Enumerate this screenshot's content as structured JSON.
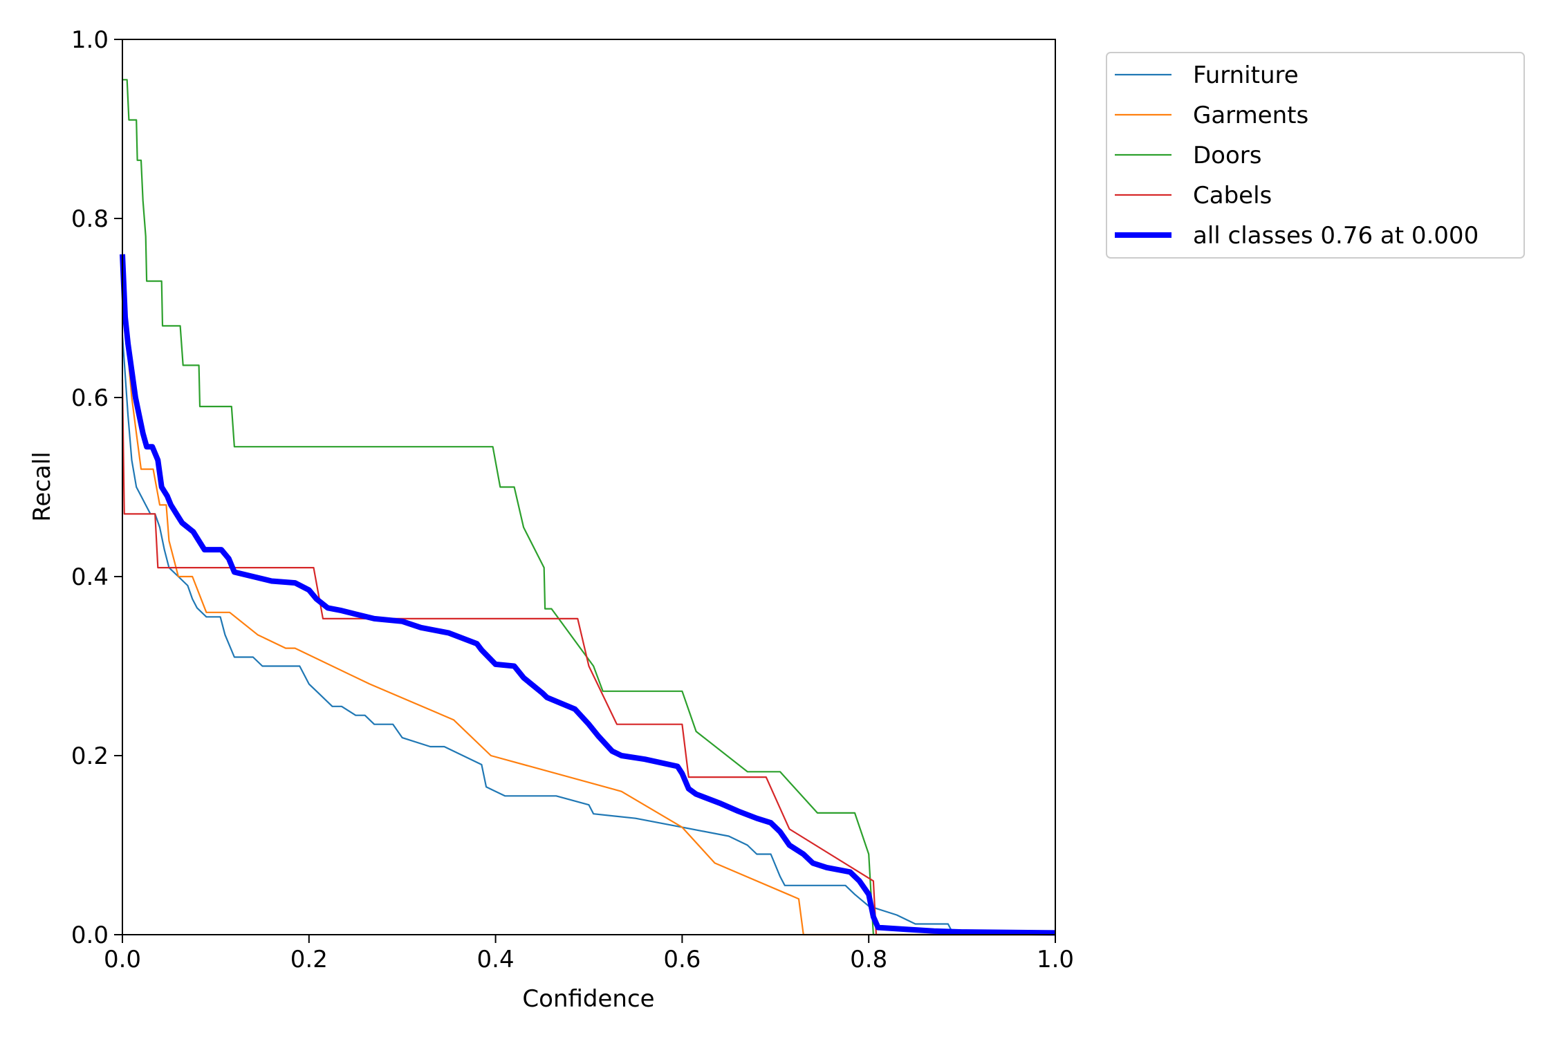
{
  "chart_data": {
    "type": "line",
    "title": "",
    "xlabel": "Confidence",
    "ylabel": "Recall",
    "xlim": [
      0,
      1
    ],
    "ylim": [
      0,
      1
    ],
    "xticks": [
      "0.0",
      "0.2",
      "0.4",
      "0.6",
      "0.8",
      "1.0"
    ],
    "yticks": [
      "0.0",
      "0.2",
      "0.4",
      "0.6",
      "0.8",
      "1.0"
    ],
    "grid": false,
    "legend_position": "outside-top-right",
    "series": [
      {
        "name": "Furniture",
        "color": "#1f77b4",
        "points": [
          [
            0.0,
            0.67
          ],
          [
            0.006,
            0.58
          ],
          [
            0.01,
            0.53
          ],
          [
            0.015,
            0.5
          ],
          [
            0.02,
            0.49
          ],
          [
            0.025,
            0.48
          ],
          [
            0.03,
            0.47
          ],
          [
            0.035,
            0.47
          ],
          [
            0.04,
            0.455
          ],
          [
            0.045,
            0.43
          ],
          [
            0.05,
            0.41
          ],
          [
            0.06,
            0.4
          ],
          [
            0.07,
            0.39
          ],
          [
            0.075,
            0.375
          ],
          [
            0.08,
            0.365
          ],
          [
            0.09,
            0.355
          ],
          [
            0.105,
            0.355
          ],
          [
            0.11,
            0.335
          ],
          [
            0.12,
            0.31
          ],
          [
            0.14,
            0.31
          ],
          [
            0.15,
            0.3
          ],
          [
            0.19,
            0.3
          ],
          [
            0.2,
            0.28
          ],
          [
            0.21,
            0.27
          ],
          [
            0.225,
            0.255
          ],
          [
            0.235,
            0.255
          ],
          [
            0.25,
            0.245
          ],
          [
            0.26,
            0.245
          ],
          [
            0.27,
            0.235
          ],
          [
            0.29,
            0.235
          ],
          [
            0.3,
            0.22
          ],
          [
            0.33,
            0.21
          ],
          [
            0.345,
            0.21
          ],
          [
            0.365,
            0.2
          ],
          [
            0.385,
            0.19
          ],
          [
            0.39,
            0.165
          ],
          [
            0.41,
            0.155
          ],
          [
            0.465,
            0.155
          ],
          [
            0.5,
            0.145
          ],
          [
            0.505,
            0.135
          ],
          [
            0.55,
            0.13
          ],
          [
            0.6,
            0.12
          ],
          [
            0.65,
            0.11
          ],
          [
            0.67,
            0.1
          ],
          [
            0.68,
            0.09
          ],
          [
            0.695,
            0.09
          ],
          [
            0.705,
            0.065
          ],
          [
            0.71,
            0.055
          ],
          [
            0.775,
            0.055
          ],
          [
            0.785,
            0.045
          ],
          [
            0.8,
            0.032
          ],
          [
            0.83,
            0.022
          ],
          [
            0.85,
            0.012
          ],
          [
            0.885,
            0.012
          ],
          [
            0.89,
            0.002
          ],
          [
            1.0,
            0.002
          ]
        ]
      },
      {
        "name": "Garments",
        "color": "#ff7f0e",
        "points": [
          [
            0.0,
            0.72
          ],
          [
            0.005,
            0.66
          ],
          [
            0.01,
            0.6
          ],
          [
            0.015,
            0.56
          ],
          [
            0.02,
            0.52
          ],
          [
            0.033,
            0.52
          ],
          [
            0.04,
            0.48
          ],
          [
            0.047,
            0.48
          ],
          [
            0.05,
            0.44
          ],
          [
            0.06,
            0.4
          ],
          [
            0.075,
            0.4
          ],
          [
            0.09,
            0.36
          ],
          [
            0.115,
            0.36
          ],
          [
            0.145,
            0.335
          ],
          [
            0.175,
            0.32
          ],
          [
            0.185,
            0.32
          ],
          [
            0.265,
            0.28
          ],
          [
            0.355,
            0.24
          ],
          [
            0.395,
            0.2
          ],
          [
            0.535,
            0.16
          ],
          [
            0.6,
            0.12
          ],
          [
            0.635,
            0.08
          ],
          [
            0.725,
            0.04
          ],
          [
            0.73,
            0.0
          ],
          [
            1.0,
            0.0
          ]
        ]
      },
      {
        "name": "Doors",
        "color": "#2ca02c",
        "points": [
          [
            0.0,
            0.955
          ],
          [
            0.005,
            0.955
          ],
          [
            0.007,
            0.91
          ],
          [
            0.015,
            0.91
          ],
          [
            0.016,
            0.865
          ],
          [
            0.02,
            0.865
          ],
          [
            0.022,
            0.82
          ],
          [
            0.025,
            0.78
          ],
          [
            0.026,
            0.73
          ],
          [
            0.042,
            0.73
          ],
          [
            0.043,
            0.68
          ],
          [
            0.062,
            0.68
          ],
          [
            0.065,
            0.636
          ],
          [
            0.082,
            0.636
          ],
          [
            0.083,
            0.59
          ],
          [
            0.117,
            0.59
          ],
          [
            0.12,
            0.545
          ],
          [
            0.397,
            0.545
          ],
          [
            0.405,
            0.5
          ],
          [
            0.42,
            0.5
          ],
          [
            0.43,
            0.455
          ],
          [
            0.452,
            0.41
          ],
          [
            0.453,
            0.364
          ],
          [
            0.46,
            0.364
          ],
          [
            0.505,
            0.3
          ],
          [
            0.515,
            0.272
          ],
          [
            0.6,
            0.272
          ],
          [
            0.615,
            0.227
          ],
          [
            0.67,
            0.182
          ],
          [
            0.705,
            0.182
          ],
          [
            0.745,
            0.136
          ],
          [
            0.785,
            0.136
          ],
          [
            0.8,
            0.09
          ],
          [
            0.805,
            0.0
          ],
          [
            1.0,
            0.0
          ]
        ]
      },
      {
        "name": "Cabels",
        "color": "#d62728",
        "points": [
          [
            0.0,
            0.62
          ],
          [
            0.002,
            0.47
          ],
          [
            0.035,
            0.47
          ],
          [
            0.038,
            0.41
          ],
          [
            0.205,
            0.41
          ],
          [
            0.215,
            0.353
          ],
          [
            0.488,
            0.353
          ],
          [
            0.5,
            0.3
          ],
          [
            0.53,
            0.235
          ],
          [
            0.6,
            0.235
          ],
          [
            0.607,
            0.176
          ],
          [
            0.69,
            0.176
          ],
          [
            0.715,
            0.118
          ],
          [
            0.805,
            0.06
          ],
          [
            0.808,
            0.0
          ],
          [
            1.0,
            0.0
          ]
        ]
      },
      {
        "name": "all classes 0.76 at 0.000",
        "color": "#0000ff",
        "points": [
          [
            0.0,
            0.76
          ],
          [
            0.003,
            0.69
          ],
          [
            0.006,
            0.66
          ],
          [
            0.01,
            0.63
          ],
          [
            0.014,
            0.6
          ],
          [
            0.018,
            0.58
          ],
          [
            0.022,
            0.56
          ],
          [
            0.026,
            0.545
          ],
          [
            0.032,
            0.545
          ],
          [
            0.038,
            0.53
          ],
          [
            0.042,
            0.5
          ],
          [
            0.048,
            0.49
          ],
          [
            0.052,
            0.48
          ],
          [
            0.058,
            0.47
          ],
          [
            0.064,
            0.46
          ],
          [
            0.07,
            0.455
          ],
          [
            0.076,
            0.45
          ],
          [
            0.082,
            0.44
          ],
          [
            0.088,
            0.43
          ],
          [
            0.106,
            0.43
          ],
          [
            0.114,
            0.42
          ],
          [
            0.12,
            0.405
          ],
          [
            0.14,
            0.4
          ],
          [
            0.16,
            0.395
          ],
          [
            0.185,
            0.393
          ],
          [
            0.2,
            0.385
          ],
          [
            0.208,
            0.375
          ],
          [
            0.22,
            0.365
          ],
          [
            0.235,
            0.362
          ],
          [
            0.25,
            0.358
          ],
          [
            0.27,
            0.353
          ],
          [
            0.3,
            0.35
          ],
          [
            0.32,
            0.343
          ],
          [
            0.35,
            0.337
          ],
          [
            0.38,
            0.325
          ],
          [
            0.385,
            0.318
          ],
          [
            0.4,
            0.302
          ],
          [
            0.42,
            0.3
          ],
          [
            0.43,
            0.287
          ],
          [
            0.45,
            0.27
          ],
          [
            0.455,
            0.265
          ],
          [
            0.485,
            0.252
          ],
          [
            0.5,
            0.235
          ],
          [
            0.51,
            0.222
          ],
          [
            0.525,
            0.205
          ],
          [
            0.535,
            0.2
          ],
          [
            0.56,
            0.196
          ],
          [
            0.595,
            0.188
          ],
          [
            0.6,
            0.18
          ],
          [
            0.607,
            0.163
          ],
          [
            0.615,
            0.157
          ],
          [
            0.64,
            0.147
          ],
          [
            0.66,
            0.138
          ],
          [
            0.68,
            0.13
          ],
          [
            0.695,
            0.125
          ],
          [
            0.705,
            0.115
          ],
          [
            0.715,
            0.1
          ],
          [
            0.73,
            0.09
          ],
          [
            0.74,
            0.08
          ],
          [
            0.755,
            0.075
          ],
          [
            0.78,
            0.07
          ],
          [
            0.79,
            0.06
          ],
          [
            0.8,
            0.045
          ],
          [
            0.805,
            0.02
          ],
          [
            0.81,
            0.008
          ],
          [
            0.84,
            0.006
          ],
          [
            0.87,
            0.004
          ],
          [
            0.9,
            0.003
          ],
          [
            1.0,
            0.002
          ]
        ]
      }
    ]
  }
}
